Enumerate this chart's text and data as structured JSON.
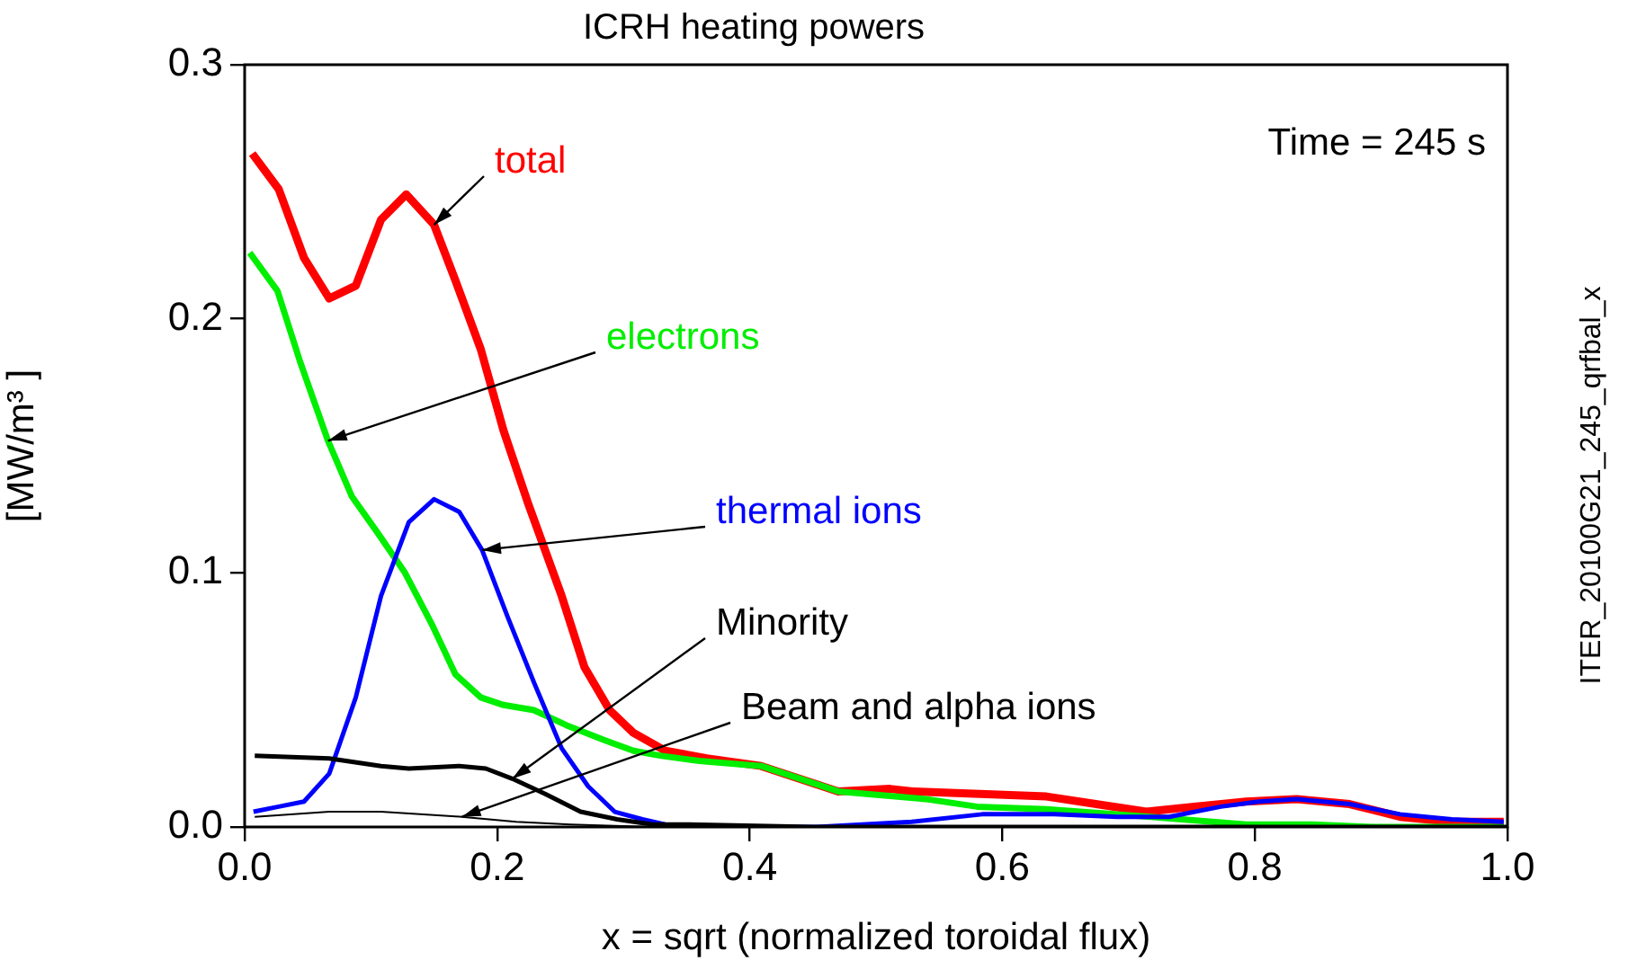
{
  "chart_data": {
    "type": "line",
    "title": "ICRH heating powers",
    "xlabel": "x = sqrt (normalized toroidal flux)",
    "ylabel": "[MW/m³ ]",
    "xlim": [
      0,
      1
    ],
    "xticks": [
      {
        "value": 0,
        "label": "0.0"
      },
      {
        "value": 0.2,
        "label": "0.2"
      },
      {
        "value": 0.4,
        "label": "0.4"
      },
      {
        "value": 0.6,
        "label": "0.6"
      },
      {
        "value": 0.8,
        "label": "0.8"
      },
      {
        "value": 1,
        "label": "1.0"
      }
    ],
    "ylim": [
      0,
      0.3
    ],
    "yticks": [
      {
        "value": 0,
        "label": "0.0"
      },
      {
        "value": 0.1,
        "label": "0.1"
      },
      {
        "value": 0.2,
        "label": "0.2"
      },
      {
        "value": 0.3,
        "label": "0.3"
      }
    ],
    "grid": false,
    "legend": false,
    "marker": "none",
    "line_style": "solid",
    "annotations": [
      "Time = 245 s",
      "ITER_20100G21_245_qrfbal_x"
    ],
    "series": [
      {
        "name": "total",
        "color": "#ff0000",
        "x": [
          0.006,
          0.027,
          0.047,
          0.067,
          0.088,
          0.108,
          0.128,
          0.15,
          0.167,
          0.187,
          0.205,
          0.224,
          0.251,
          0.269,
          0.289,
          0.308,
          0.333,
          0.366,
          0.409,
          0.47,
          0.511,
          0.529,
          0.635,
          0.714,
          0.752,
          0.793,
          0.833,
          0.875,
          0.915,
          0.956,
          0.997
        ],
        "values": [
          0.265,
          0.251,
          0.224,
          0.208,
          0.213,
          0.239,
          0.249,
          0.237,
          0.215,
          0.188,
          0.156,
          0.128,
          0.091,
          0.063,
          0.046,
          0.037,
          0.03,
          0.027,
          0.024,
          0.014,
          0.015,
          0.014,
          0.012,
          0.006,
          0.008,
          0.01,
          0.011,
          0.009,
          0.004,
          0.002,
          0.002
        ]
      },
      {
        "name": "electrons",
        "color": "#00ee00",
        "x": [
          0.004,
          0.026,
          0.044,
          0.066,
          0.085,
          0.105,
          0.127,
          0.148,
          0.167,
          0.187,
          0.205,
          0.229,
          0.255,
          0.286,
          0.308,
          0.33,
          0.36,
          0.409,
          0.47,
          0.539,
          0.58,
          0.635,
          0.691,
          0.742,
          0.793,
          0.845,
          0.895,
          0.997
        ],
        "values": [
          0.226,
          0.211,
          0.183,
          0.152,
          0.13,
          0.116,
          0.1,
          0.08,
          0.06,
          0.051,
          0.048,
          0.046,
          0.04,
          0.034,
          0.03,
          0.028,
          0.026,
          0.024,
          0.014,
          0.011,
          0.008,
          0.007,
          0.005,
          0.003,
          0.001,
          0.001,
          0,
          0
        ]
      },
      {
        "name": "thermal ions",
        "color": "#0000ff",
        "x": [
          0.007,
          0.027,
          0.047,
          0.067,
          0.088,
          0.108,
          0.13,
          0.15,
          0.17,
          0.188,
          0.208,
          0.229,
          0.251,
          0.272,
          0.293,
          0.315,
          0.333,
          0.386,
          0.453,
          0.528,
          0.584,
          0.641,
          0.691,
          0.732,
          0.773,
          0.803,
          0.833,
          0.875,
          0.915,
          0.956,
          0.997
        ],
        "values": [
          0.006,
          0.008,
          0.01,
          0.021,
          0.051,
          0.091,
          0.12,
          0.129,
          0.124,
          0.109,
          0.083,
          0.057,
          0.031,
          0.016,
          0.006,
          0.003,
          0.001,
          0,
          0,
          0.002,
          0.005,
          0.005,
          0.004,
          0.004,
          0.008,
          0.01,
          0.011,
          0.009,
          0.005,
          0.003,
          0.002
        ]
      },
      {
        "name": "Minority",
        "color": "#000000",
        "x": [
          0.008,
          0.067,
          0.108,
          0.13,
          0.17,
          0.191,
          0.212,
          0.238,
          0.266,
          0.295,
          0.323,
          0.352,
          0.45,
          1
        ],
        "values": [
          0.028,
          0.027,
          0.024,
          0.023,
          0.024,
          0.023,
          0.019,
          0.013,
          0.006,
          0.003,
          0.001,
          0.001,
          0,
          0
        ]
      },
      {
        "name": "Beam and alpha ions",
        "color": "#000000",
        "x": [
          0.008,
          0.067,
          0.108,
          0.172,
          0.215,
          0.258,
          0.323,
          1
        ],
        "values": [
          0.004,
          0.006,
          0.006,
          0.004,
          0.002,
          0.001,
          0,
          0
        ]
      }
    ]
  }
}
